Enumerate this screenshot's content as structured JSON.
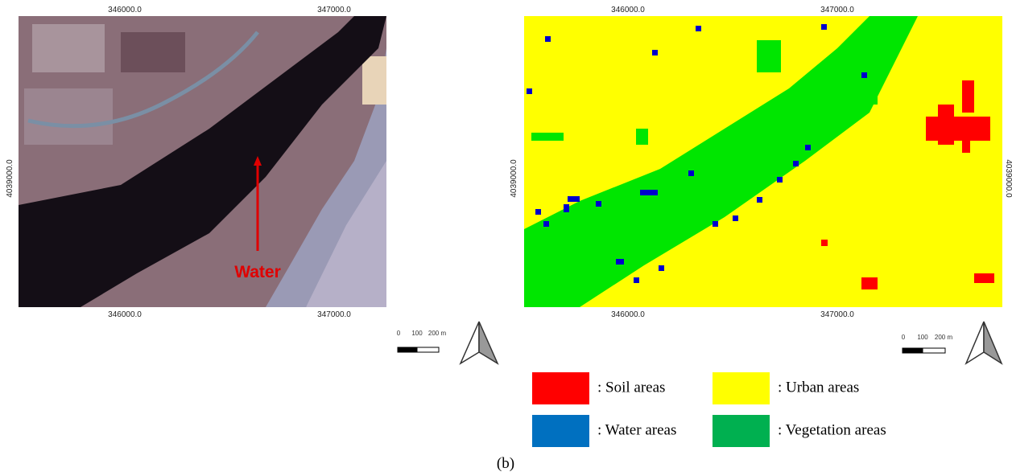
{
  "left_panel": {
    "top_x_labels": [
      "346000.0",
      "347000.0"
    ],
    "bottom_x_labels": [
      "346000.0",
      "347000.0"
    ],
    "y_label": "4039000.0",
    "annotation": "Water",
    "scale_labels": [
      "0",
      "100",
      "200 m"
    ]
  },
  "right_panel": {
    "top_x_labels": [
      "346000.0",
      "347000.0"
    ],
    "bottom_x_labels": [
      "346000.0",
      "347000.0"
    ],
    "y_label_left": "4039000.0",
    "y_label_right": "4039000.0",
    "scale_labels": [
      "0",
      "100",
      "200 m"
    ]
  },
  "legend": [
    {
      "label": ": Soil areas",
      "color": "#ff0000"
    },
    {
      "label": ": Urban areas",
      "color": "#ffff00"
    },
    {
      "label": ": Water areas",
      "color": "#0070c0"
    },
    {
      "label": ": Vegetation areas",
      "color": "#00b050"
    }
  ],
  "caption": "(b)"
}
